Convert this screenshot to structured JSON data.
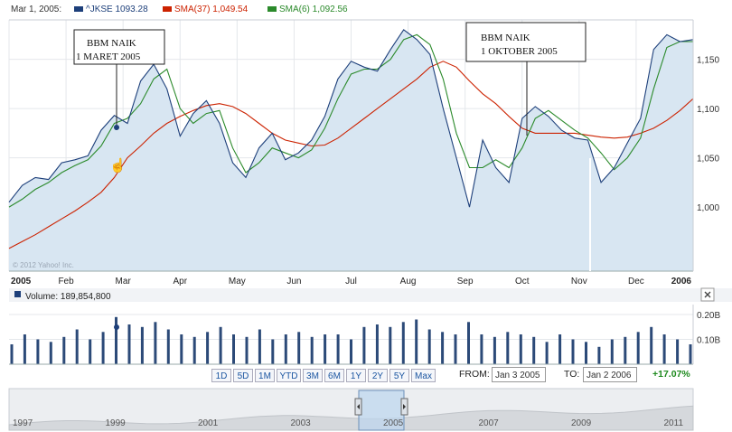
{
  "legend": {
    "date": "Mar 1, 2005:",
    "price_label": "^JKSE 1093.28",
    "sma37_label": "SMA(37) 1,049.54",
    "sma6_label": "SMA(6) 1,092.56",
    "colors": {
      "price": "#1d3f7a",
      "sma37": "#cc2200",
      "sma6": "#2b8a2b"
    }
  },
  "watermark": "© 2012 Yahoo! Inc.",
  "annotations": [
    {
      "lines": [
        "BBM NAIK",
        "1 MARET 2005"
      ],
      "date": "Mar 1, 2005"
    },
    {
      "lines": [
        "BBM NAIK",
        "1 OKTOBER 2005"
      ],
      "date": "Oct 1, 2005"
    }
  ],
  "volume_label": "Volume: 189,854,800",
  "range_buttons": [
    "1D",
    "5D",
    "1M",
    "YTD",
    "3M",
    "6M",
    "1Y",
    "2Y",
    "5Y",
    "Max"
  ],
  "from_label": "FROM:",
  "from_value": "Jan 3 2005",
  "to_label": "TO:",
  "to_value": "Jan 2 2006",
  "change": "+17.07%",
  "navigator_years": [
    "1997",
    "1999",
    "2001",
    "2003",
    "2005",
    "2007",
    "2009",
    "2011"
  ],
  "chart_data": [
    {
      "type": "line",
      "title": "^JKSE",
      "x_tick_labels": [
        "2005",
        "Feb",
        "Mar",
        "Apr",
        "May",
        "Jun",
        "Jul",
        "Aug",
        "Sep",
        "Oct",
        "Nov",
        "Dec",
        "2006"
      ],
      "y_tick_labels": [
        "1,000",
        "1,050",
        "1,100",
        "1,150"
      ],
      "y_ticks": [
        1000,
        1050,
        1100,
        1150
      ],
      "ylim": [
        935,
        1190
      ],
      "grid": true,
      "legend_position": "top-left",
      "x": [
        "Jan 3",
        "Jan 10",
        "Jan 17",
        "Jan 24",
        "Jan 31",
        "Feb 7",
        "Feb 14",
        "Feb 21",
        "Feb 28",
        "Mar 7",
        "Mar 14",
        "Mar 21",
        "Mar 28",
        "Apr 4",
        "Apr 11",
        "Apr 18",
        "Apr 25",
        "May 2",
        "May 9",
        "May 16",
        "May 23",
        "May 30",
        "Jun 6",
        "Jun 13",
        "Jun 20",
        "Jun 27",
        "Jul 4",
        "Jul 11",
        "Jul 18",
        "Jul 25",
        "Aug 1",
        "Aug 8",
        "Aug 15",
        "Aug 22",
        "Aug 29",
        "Sep 5",
        "Sep 12",
        "Sep 19",
        "Sep 26",
        "Oct 3",
        "Oct 10",
        "Oct 17",
        "Oct 24",
        "Oct 31",
        "Nov 7",
        "Nov 14",
        "Nov 21",
        "Nov 28",
        "Dec 5",
        "Dec 12",
        "Dec 19",
        "Dec 26",
        "Jan 2"
      ],
      "series": [
        {
          "name": "^JKSE",
          "values": [
            1005,
            1022,
            1030,
            1028,
            1045,
            1048,
            1052,
            1078,
            1093,
            1085,
            1128,
            1145,
            1120,
            1072,
            1095,
            1108,
            1085,
            1045,
            1030,
            1060,
            1075,
            1048,
            1055,
            1068,
            1092,
            1130,
            1148,
            1142,
            1138,
            1160,
            1180,
            1170,
            1155,
            1100,
            1050,
            1000,
            1068,
            1040,
            1025,
            1090,
            1102,
            1092,
            1078,
            1070,
            1068,
            1025,
            1040,
            1065,
            1090,
            1160,
            1175,
            1168,
            1170
          ]
        },
        {
          "name": "SMA(37)",
          "values": [
            958,
            965,
            972,
            980,
            988,
            996,
            1005,
            1015,
            1030,
            1050,
            1062,
            1075,
            1085,
            1092,
            1098,
            1103,
            1105,
            1102,
            1095,
            1085,
            1075,
            1068,
            1065,
            1062,
            1063,
            1070,
            1080,
            1090,
            1100,
            1110,
            1120,
            1130,
            1142,
            1148,
            1142,
            1128,
            1115,
            1105,
            1092,
            1080,
            1075,
            1075,
            1075,
            1075,
            1073,
            1071,
            1070,
            1071,
            1075,
            1080,
            1088,
            1098,
            1110
          ]
        },
        {
          "name": "SMA(6)",
          "values": [
            1000,
            1008,
            1018,
            1025,
            1035,
            1042,
            1048,
            1062,
            1085,
            1090,
            1105,
            1130,
            1140,
            1100,
            1085,
            1095,
            1098,
            1060,
            1035,
            1045,
            1060,
            1055,
            1050,
            1058,
            1080,
            1110,
            1135,
            1140,
            1140,
            1150,
            1170,
            1175,
            1165,
            1130,
            1075,
            1040,
            1040,
            1048,
            1040,
            1060,
            1090,
            1098,
            1088,
            1078,
            1070,
            1055,
            1038,
            1050,
            1070,
            1120,
            1162,
            1168,
            1168
          ]
        }
      ]
    },
    {
      "type": "bar",
      "title": "Volume",
      "y_tick_labels": [
        "0.10B",
        "0.20B"
      ],
      "y_ticks": [
        0.1,
        0.2
      ],
      "ylim": [
        0,
        0.24
      ],
      "values": [
        0.08,
        0.12,
        0.1,
        0.09,
        0.11,
        0.14,
        0.1,
        0.13,
        0.19,
        0.16,
        0.15,
        0.17,
        0.14,
        0.12,
        0.11,
        0.13,
        0.15,
        0.12,
        0.11,
        0.14,
        0.1,
        0.12,
        0.13,
        0.11,
        0.12,
        0.12,
        0.1,
        0.15,
        0.16,
        0.15,
        0.17,
        0.18,
        0.14,
        0.13,
        0.12,
        0.17,
        0.12,
        0.11,
        0.13,
        0.12,
        0.11,
        0.09,
        0.12,
        0.1,
        0.09,
        0.07,
        0.1,
        0.11,
        0.13,
        0.15,
        0.12,
        0.1,
        0.08
      ]
    }
  ]
}
